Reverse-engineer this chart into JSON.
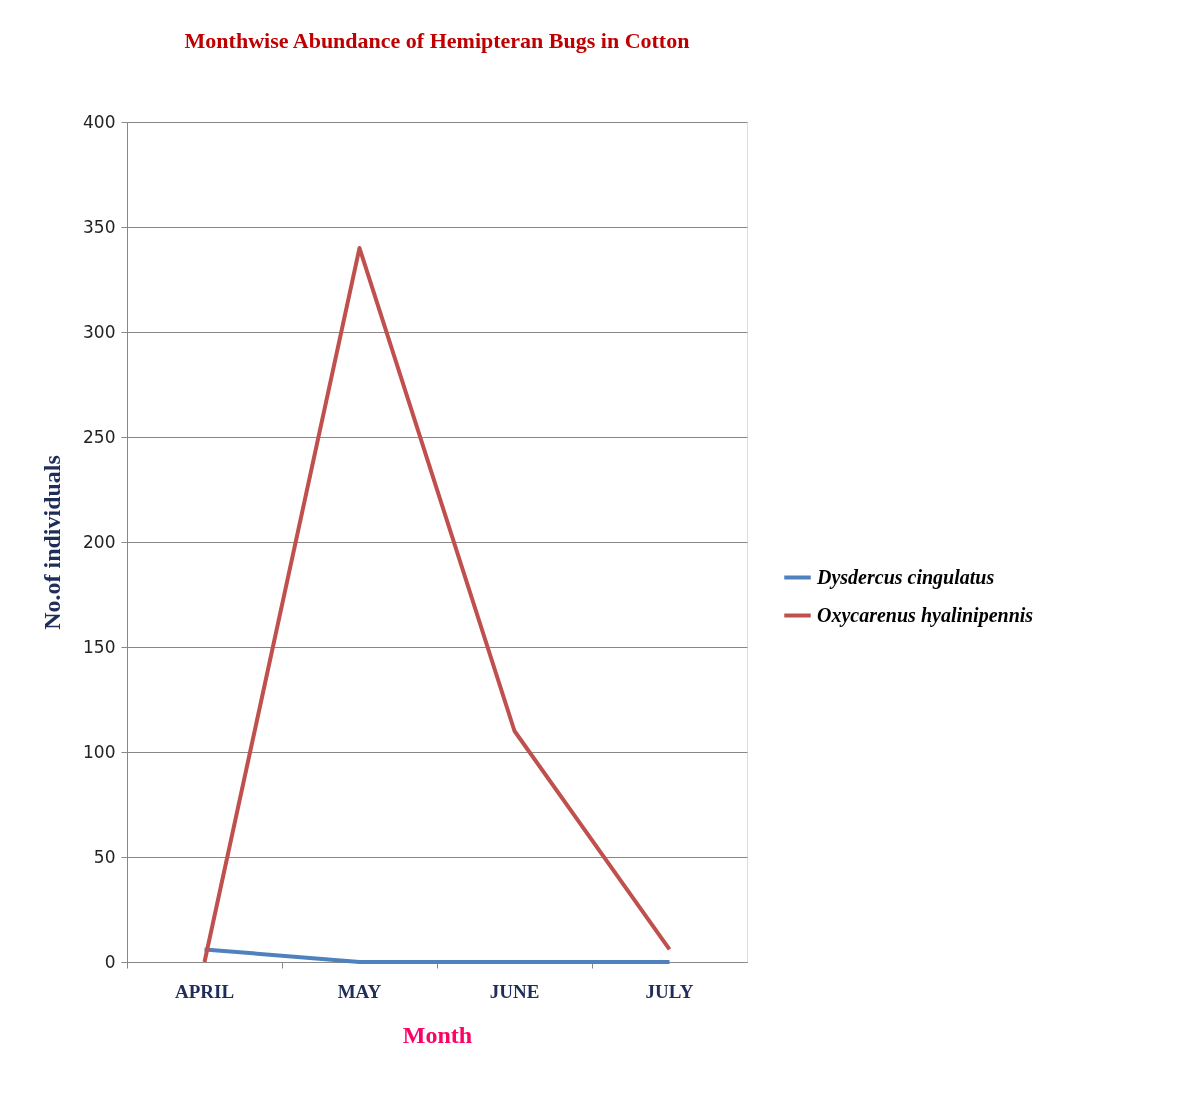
{
  "chart_data": {
    "type": "line",
    "title": "Monthwise Abundance of Hemipteran Bugs in Cotton",
    "xlabel": "Month",
    "ylabel": "No.of individuals",
    "categories": [
      "APRIL",
      "MAY",
      "JUNE",
      "JULY"
    ],
    "series": [
      {
        "name": "Dysdercus cingulatus",
        "color": "#4f81bd",
        "values": [
          6,
          0,
          0,
          0
        ]
      },
      {
        "name": "Oxycarenus hyalinipennis",
        "color": "#c0504d",
        "values": [
          0,
          340,
          110,
          6
        ]
      }
    ],
    "ylim": [
      0,
      400
    ],
    "yticks": [
      0,
      50,
      100,
      150,
      200,
      250,
      300,
      350,
      400
    ],
    "grid": "y",
    "legend": "right",
    "marker": "none",
    "line_style": "solid"
  }
}
